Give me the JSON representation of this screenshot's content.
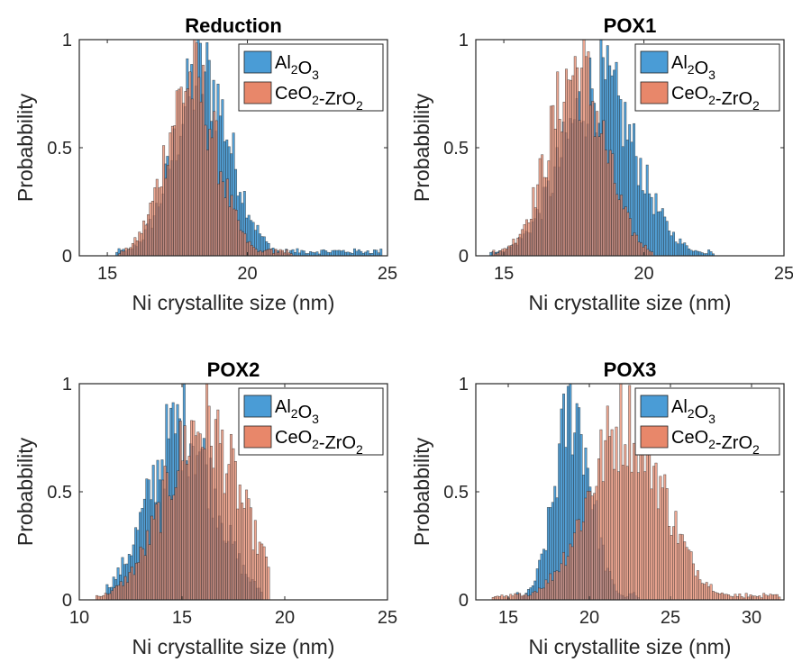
{
  "chart_data": [
    {
      "type": "histogram",
      "title": "Reduction",
      "xlabel": "Ni crystallite size (nm)",
      "ylabel": "Probabbility",
      "xlim": [
        14,
        25
      ],
      "ylim": [
        0,
        1
      ],
      "xticks": [
        15,
        20,
        25
      ],
      "yticks": [
        0,
        0.5,
        1
      ],
      "legend_position": "top-right",
      "series": [
        {
          "name": "Al₂O₃",
          "color": "#4a9cd6",
          "distribution": {
            "mean": 18.4,
            "std": 1.0
          },
          "x_range": [
            15.3,
            24.8
          ],
          "peak_value": 1
        },
        {
          "name": "CeO₂-ZrO₂",
          "color": "#e8876a",
          "distribution": {
            "mean": 18.0,
            "std": 0.9
          },
          "x_range": [
            15.4,
            21.6
          ],
          "peak_value": 1
        }
      ]
    },
    {
      "type": "histogram",
      "title": "POX1",
      "xlabel": "Ni crystallite size (nm)",
      "ylabel": "Probabbility",
      "xlim": [
        14,
        25
      ],
      "ylim": [
        0,
        1
      ],
      "xticks": [
        15,
        20,
        25
      ],
      "yticks": [
        0,
        0.5,
        1
      ],
      "legend_position": "top-right",
      "series": [
        {
          "name": "Al₂O₃",
          "color": "#4a9cd6",
          "distribution": {
            "mean": 18.4,
            "std": 1.3
          },
          "x_range": [
            14.5,
            22.5
          ],
          "peak_value": 1
        },
        {
          "name": "CeO₂-ZrO₂",
          "color": "#e8876a",
          "distribution": {
            "mean": 17.6,
            "std": 1.0
          },
          "x_range": [
            14.6,
            20.3
          ],
          "peak_value": 1
        }
      ]
    },
    {
      "type": "histogram",
      "title": "POX2",
      "xlabel": "Ni crystallite size (nm)",
      "ylabel": "Probabbility",
      "xlim": [
        10,
        25
      ],
      "ylim": [
        0,
        1
      ],
      "xticks": [
        10,
        15,
        20,
        25
      ],
      "yticks": [
        0,
        0.5,
        1
      ],
      "legend_position": "top-right",
      "series": [
        {
          "name": "Al₂O₃",
          "color": "#4a9cd6",
          "distribution": {
            "mean": 15.0,
            "std": 1.6
          },
          "x_range": [
            11.3,
            18.9
          ],
          "peak_value": 1
        },
        {
          "name": "CeO₂-ZrO₂",
          "color": "#e8876a",
          "distribution": {
            "mean": 16.0,
            "std": 1.8
          },
          "x_range": [
            10.8,
            19.2
          ],
          "peak_value": 1
        }
      ]
    },
    {
      "type": "histogram",
      "title": "POX3",
      "xlabel": "Ni crystallite size (nm)",
      "ylabel": "Probabbility",
      "xlim": [
        13,
        32
      ],
      "ylim": [
        0,
        1
      ],
      "xticks": [
        15,
        20,
        25,
        30
      ],
      "yticks": [
        0,
        0.5,
        1
      ],
      "legend_position": "top-right",
      "series": [
        {
          "name": "Al₂O₃",
          "color": "#4a9cd6",
          "distribution": {
            "mean": 19.0,
            "std": 1.1
          },
          "x_range": [
            15.5,
            23.0
          ],
          "peak_value": 1
        },
        {
          "name": "CeO₂-ZrO₂",
          "color": "#e8876a",
          "distribution": {
            "mean": 22.3,
            "std": 2.3
          },
          "x_range": [
            14.0,
            31.7
          ],
          "peak_value": 1
        }
      ]
    }
  ]
}
